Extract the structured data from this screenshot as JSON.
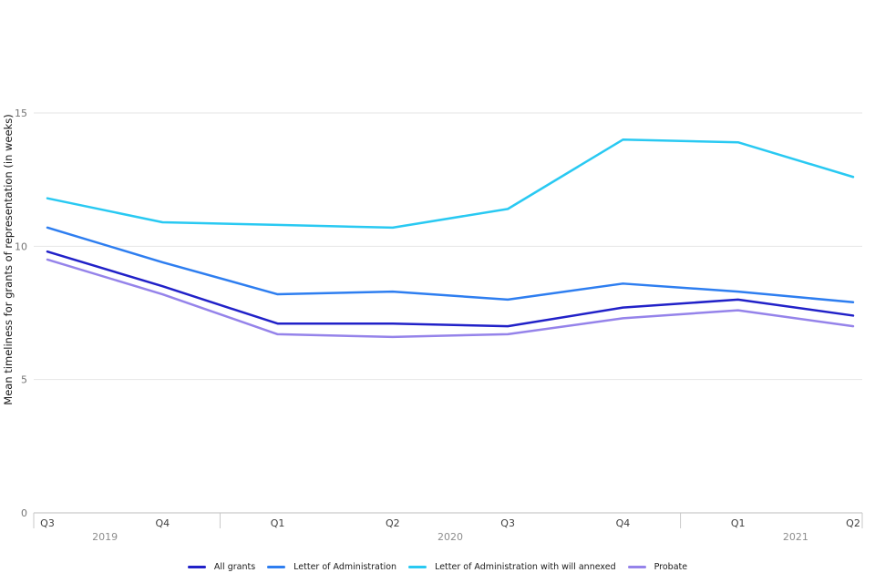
{
  "chart_data": {
    "type": "line",
    "title": "",
    "ylabel": "Mean timeliness for grants of representation (in weeks)",
    "xlabel": "",
    "x_categories": [
      "Q3",
      "Q4",
      "Q1",
      "Q2",
      "Q3",
      "Q4",
      "Q1",
      "Q2"
    ],
    "year_groups": [
      {
        "label": "2019",
        "first_quarter_index": 0,
        "last_quarter_index": 1
      },
      {
        "label": "2020",
        "first_quarter_index": 2,
        "last_quarter_index": 5
      },
      {
        "label": "2021",
        "first_quarter_index": 6,
        "last_quarter_index": 7
      }
    ],
    "y_ticks": [
      0,
      5,
      10,
      15
    ],
    "ylim": [
      0,
      18
    ],
    "grid": "horizontal",
    "legend_position": "bottom",
    "series": [
      {
        "name": "All grants",
        "color": "#2121c8",
        "values": [
          9.8,
          8.5,
          7.1,
          7.1,
          7.0,
          7.7,
          8.0,
          7.4
        ]
      },
      {
        "name": "Letter of Administration",
        "color": "#2e7ef0",
        "values": [
          10.7,
          9.4,
          8.2,
          8.3,
          8.0,
          8.6,
          8.3,
          7.9
        ]
      },
      {
        "name": "Letter of Administration with will annexed",
        "color": "#29c9f2",
        "values": [
          11.8,
          10.9,
          10.8,
          10.7,
          11.4,
          14.0,
          13.9,
          12.6
        ]
      },
      {
        "name": "Probate",
        "color": "#9583ea",
        "values": [
          9.5,
          8.2,
          6.7,
          6.6,
          6.7,
          7.3,
          7.6,
          7.0
        ]
      }
    ]
  }
}
